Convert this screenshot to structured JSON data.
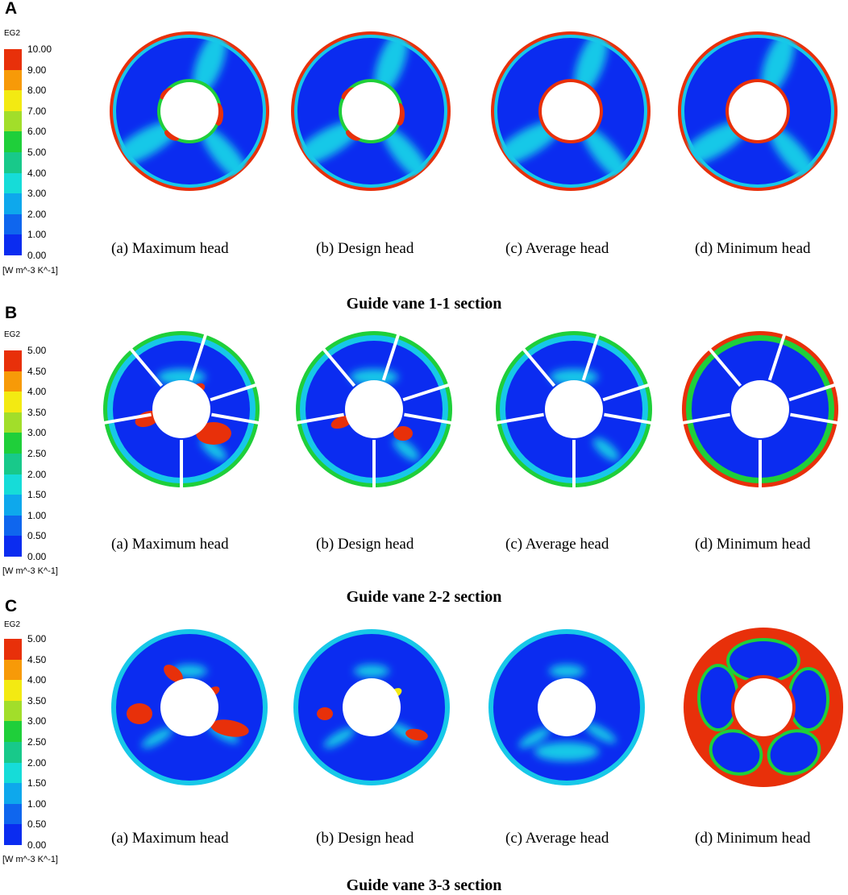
{
  "colors": {
    "scale": [
      "#0b2cf0",
      "#0f66ee",
      "#0ea8ec",
      "#16dcd8",
      "#18c98a",
      "#1fcf3a",
      "#a2de2a",
      "#f3ea12",
      "#f79a08",
      "#e8300a"
    ],
    "background": "#ffffff"
  },
  "panels": [
    {
      "letter": "A",
      "legend": {
        "title": "EG2",
        "ticks": [
          "10.00",
          "9.00",
          "8.00",
          "7.00",
          "6.00",
          "5.00",
          "4.00",
          "3.00",
          "2.00",
          "1.00",
          "0.00"
        ],
        "unit": "[W m^-3 K^-1]"
      },
      "variant": "annulus",
      "captions": [
        "(a)  Maximum head",
        "(b)  Design head",
        "(c)  Average head",
        "(d)  Minimum head"
      ],
      "section_title": "Guide vane 1-1 section"
    },
    {
      "letter": "B",
      "legend": {
        "title": "EG2",
        "ticks": [
          "5.00",
          "4.50",
          "4.00",
          "3.50",
          "3.00",
          "2.50",
          "2.00",
          "1.50",
          "1.00",
          "0.50",
          "0.00"
        ],
        "unit": "[W m^-3 K^-1]"
      },
      "variant": "vanes",
      "captions": [
        "(a)  Maximum head",
        "(b)  Design head",
        "(c)  Average head",
        "(d)  Minimum head"
      ],
      "section_title": "Guide vane 2-2 section"
    },
    {
      "letter": "C",
      "legend": {
        "title": "EG2",
        "ticks": [
          "5.00",
          "4.50",
          "4.00",
          "3.50",
          "3.00",
          "2.50",
          "2.00",
          "1.50",
          "1.00",
          "0.50",
          "0.00"
        ],
        "unit": "[W m^-3 K^-1]"
      },
      "variant": "smooth",
      "captions": [
        "(a)  Maximum head",
        "(b)  Design head",
        "(c)  Average head",
        "(d)  Minimum head"
      ],
      "section_title": "Guide vane 3-3 section"
    }
  ]
}
